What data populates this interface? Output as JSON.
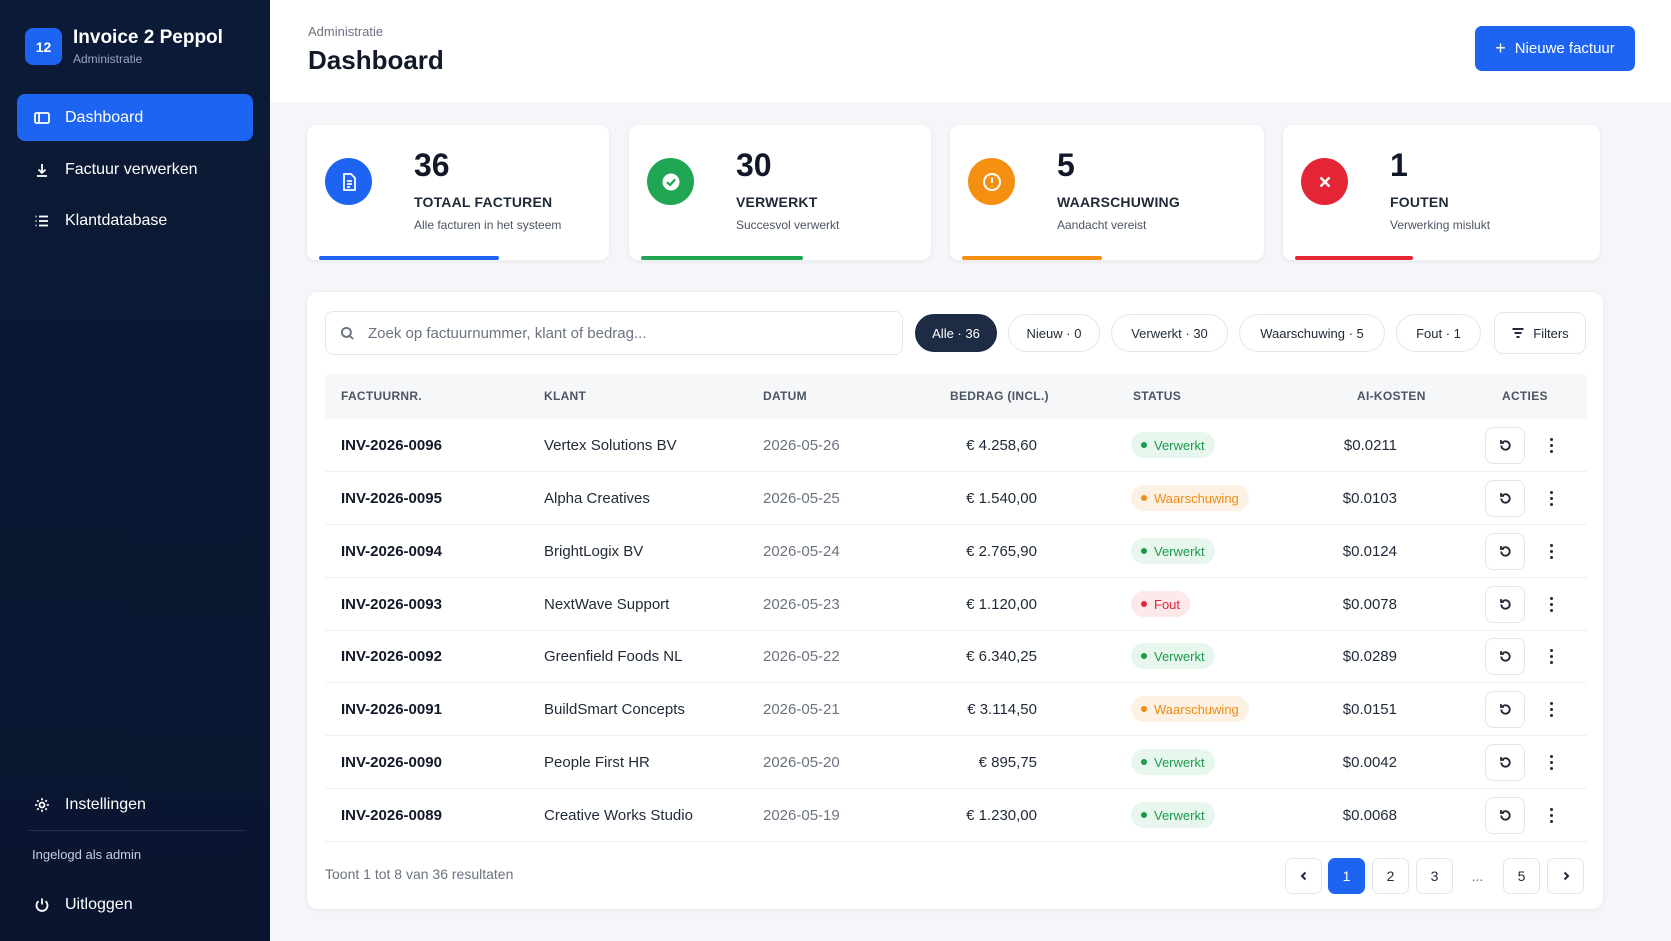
{
  "brand": {
    "logo": "12",
    "title": "Invoice 2 Peppol",
    "subtitle": "Administratie"
  },
  "nav": [
    {
      "label": "Dashboard",
      "icon": "dashboard-icon",
      "active": true
    },
    {
      "label": "Factuur verwerken",
      "icon": "download-icon",
      "active": false
    },
    {
      "label": "Klantdatabase",
      "icon": "list-icon",
      "active": false
    }
  ],
  "sidebar_bottom": {
    "settings": "Instellingen",
    "logged_in": "Ingelogd als admin",
    "logout": "Uitloggen"
  },
  "header": {
    "breadcrumb": "Administratie",
    "title": "Dashboard",
    "new_button": "Nieuwe factuur"
  },
  "stats": [
    {
      "value": "36",
      "label": "TOTAAL FACTUREN",
      "desc": "Alle facturen in het systeem",
      "color": "#1d64f2",
      "icon": "document-icon"
    },
    {
      "value": "30",
      "label": "VERWERKT",
      "desc": "Succesvol verwerkt",
      "color": "#20a553",
      "icon": "check-icon"
    },
    {
      "value": "5",
      "label": "WAARSCHUWING",
      "desc": "Aandacht vereist",
      "color": "#f58f12",
      "icon": "warning-icon"
    },
    {
      "value": "1",
      "label": "FOUTEN",
      "desc": "Verwerking mislukt",
      "color": "#e42535",
      "icon": "error-icon"
    }
  ],
  "search": {
    "placeholder": "Zoek op factuurnummer, klant of bedrag..."
  },
  "filter_chips": [
    {
      "label": "Alle · 36",
      "active": true
    },
    {
      "label": "Nieuw · 0",
      "active": false
    },
    {
      "label": "Verwerkt · 30",
      "active": false
    },
    {
      "label": "Waarschuwing · 5",
      "active": false
    },
    {
      "label": "Fout · 1",
      "active": false
    }
  ],
  "filters_button": "Filters",
  "table": {
    "columns": [
      "FACTUURNR.",
      "KLANT",
      "DATUM",
      "BEDRAG (INCL.)",
      "STATUS",
      "AI-KOSTEN",
      "ACTIES"
    ],
    "rows": [
      {
        "inv": "INV-2026-0096",
        "client": "Vertex Solutions BV",
        "date": "2026-05-26",
        "amount": "€ 4.258,60",
        "status": "Verwerkt",
        "status_type": "ok",
        "cost": "$0.0211"
      },
      {
        "inv": "INV-2026-0095",
        "client": "Alpha Creatives",
        "date": "2026-05-25",
        "amount": "€ 1.540,00",
        "status": "Waarschuwing",
        "status_type": "warn",
        "cost": "$0.0103"
      },
      {
        "inv": "INV-2026-0094",
        "client": "BrightLogix BV",
        "date": "2026-05-24",
        "amount": "€ 2.765,90",
        "status": "Verwerkt",
        "status_type": "ok",
        "cost": "$0.0124"
      },
      {
        "inv": "INV-2026-0093",
        "client": "NextWave Support",
        "date": "2026-05-23",
        "amount": "€ 1.120,00",
        "status": "Fout",
        "status_type": "err",
        "cost": "$0.0078"
      },
      {
        "inv": "INV-2026-0092",
        "client": "Greenfield Foods NL",
        "date": "2026-05-22",
        "amount": "€ 6.340,25",
        "status": "Verwerkt",
        "status_type": "ok",
        "cost": "$0.0289"
      },
      {
        "inv": "INV-2026-0091",
        "client": "BuildSmart Concepts",
        "date": "2026-05-21",
        "amount": "€ 3.114,50",
        "status": "Waarschuwing",
        "status_type": "warn",
        "cost": "$0.0151"
      },
      {
        "inv": "INV-2026-0090",
        "client": "People First HR",
        "date": "2026-05-20",
        "amount": "€ 895,75",
        "status": "Verwerkt",
        "status_type": "ok",
        "cost": "$0.0042"
      },
      {
        "inv": "INV-2026-0089",
        "client": "Creative Works Studio",
        "date": "2026-05-19",
        "amount": "€ 1.230,00",
        "status": "Verwerkt",
        "status_type": "ok",
        "cost": "$0.0068"
      }
    ]
  },
  "footer": {
    "results_text": "Toont 1 tot 8 van 36 resultaten",
    "pages": [
      "1",
      "2",
      "3",
      "...",
      "5"
    ],
    "current_page": "1"
  }
}
